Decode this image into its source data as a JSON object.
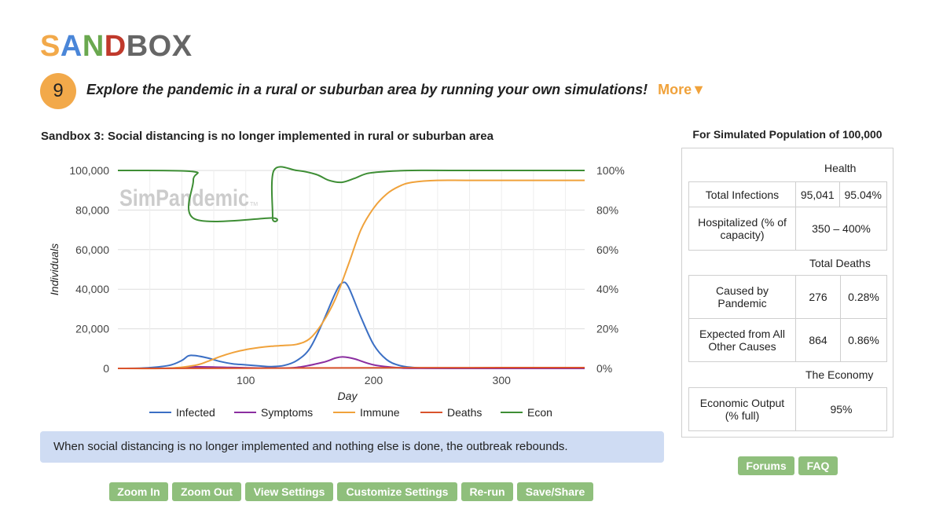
{
  "logo": {
    "letters": [
      "S",
      "A",
      "N",
      "D",
      "B",
      "O",
      "X"
    ],
    "colors": [
      "#f2a94a",
      "#4a86d8",
      "#6aa84f",
      "#c0392b",
      "#666666",
      "#666666",
      "#666666"
    ]
  },
  "step": {
    "number": "9",
    "text": "Explore the pandemic in a rural or suburban area by running your own simulations!",
    "more": "More▼"
  },
  "sandbox_title": "Sandbox 3: Social distancing is no longer implemented in rural or suburban area",
  "chart_watermark": "SimPandemic",
  "chart_watermark_tm": "TM",
  "chart_data": {
    "type": "line",
    "xlabel": "Day",
    "ylabel": "Individuals",
    "xlim": [
      0,
      365
    ],
    "ylim": [
      0,
      100000
    ],
    "y2lim": [
      0,
      100
    ],
    "x_ticks": [
      100,
      200,
      300
    ],
    "y_ticks": [
      "100,000",
      "80,000",
      "60,000",
      "40,000",
      "20,000",
      "0"
    ],
    "y2_ticks": [
      "100%",
      "80%",
      "60%",
      "40%",
      "20%",
      "0%"
    ],
    "grid": true,
    "legend": "bottom",
    "series": [
      {
        "name": "Infected",
        "color": "#3b6fc4",
        "axis": "left",
        "x": [
          0,
          20,
          40,
          50,
          55,
          60,
          70,
          80,
          90,
          100,
          110,
          120,
          130,
          140,
          150,
          160,
          170,
          175,
          180,
          190,
          200,
          210,
          220,
          230,
          240,
          260,
          300,
          365
        ],
        "y": [
          0,
          200,
          1500,
          4000,
          6300,
          6500,
          5300,
          3500,
          2300,
          1800,
          1300,
          900,
          1500,
          4000,
          10000,
          23000,
          38000,
          43000,
          41500,
          26000,
          12000,
          4500,
          1500,
          500,
          150,
          0,
          0,
          0
        ]
      },
      {
        "name": "Symptoms",
        "color": "#8b2ea0",
        "axis": "left",
        "x": [
          0,
          40,
          60,
          80,
          100,
          120,
          140,
          160,
          170,
          176,
          185,
          200,
          220,
          240,
          365
        ],
        "y": [
          0,
          100,
          800,
          600,
          300,
          200,
          500,
          3000,
          5200,
          5800,
          4800,
          1800,
          300,
          50,
          0
        ]
      },
      {
        "name": "Immune",
        "color": "#f0a23b",
        "axis": "left",
        "x": [
          0,
          40,
          60,
          70,
          80,
          90,
          100,
          110,
          120,
          130,
          140,
          150,
          160,
          170,
          180,
          190,
          200,
          210,
          220,
          230,
          250,
          280,
          365
        ],
        "y": [
          0,
          100,
          1500,
          3500,
          6000,
          8000,
          9500,
          10500,
          11200,
          11600,
          12200,
          15000,
          23000,
          35000,
          52000,
          70000,
          81000,
          88000,
          92000,
          94000,
          95000,
          95000,
          95000
        ]
      },
      {
        "name": "Deaths",
        "color": "#d9532c",
        "axis": "left",
        "x": [
          0,
          100,
          200,
          365
        ],
        "y": [
          0,
          100,
          300,
          400
        ]
      },
      {
        "name": "Econ",
        "color": "#3e8e35",
        "axis": "right",
        "x": [
          0,
          58,
          59,
          60,
          120,
          121,
          122,
          140,
          155,
          165,
          175,
          185,
          195,
          210,
          230,
          260,
          365
        ],
        "y": [
          100,
          99.5,
          95,
          75.5,
          76,
          76,
          100,
          100,
          98,
          95,
          94,
          96,
          98.5,
          99.5,
          100,
          100,
          100
        ]
      }
    ]
  },
  "caption": "When social distancing is no longer implemented and nothing else is done, the outbreak rebounds.",
  "buttons": [
    "Zoom In",
    "Zoom Out",
    "View Settings",
    "Customize Settings",
    "Re-run",
    "Save/Share"
  ],
  "panel": {
    "title": "For Simulated Population of 100,000",
    "health_label": "Health",
    "total_infections_label": "Total Infections",
    "total_infections_count": "95,041",
    "total_infections_pct": "95.04%",
    "hospitalized_label": "Hospitalized (% of capacity)",
    "hospitalized_value": "350 – 400%",
    "total_deaths_label": "Total Deaths",
    "caused_label": "Caused by Pandemic",
    "caused_count": "276",
    "caused_pct": "0.28%",
    "expected_label": "Expected from All Other Causes",
    "expected_count": "864",
    "expected_pct": "0.86%",
    "economy_label": "The Economy",
    "econ_output_label": "Economic Output (% full)",
    "econ_output_value": "95%"
  },
  "side_buttons": [
    "Forums",
    "FAQ"
  ]
}
